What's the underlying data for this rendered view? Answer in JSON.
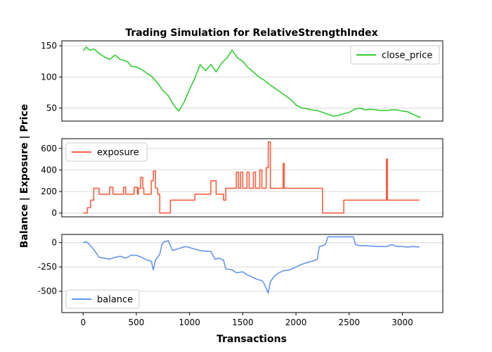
{
  "chart_data": {
    "type": "line",
    "title": "Trading Simulation for RelativeStrengthIndex",
    "xlabel": "Transactions",
    "ylabel": "Balance | Exposure | Price",
    "xlim": [
      -200,
      3380
    ],
    "x_ticks": [
      0,
      500,
      1000,
      1500,
      2000,
      2500,
      3000
    ],
    "grid": "horizontal",
    "panels": [
      {
        "series_name": "close_price",
        "color": "#32cd32",
        "legend": "top-right",
        "ylim": [
          29,
          158
        ],
        "y_ticks": [
          50,
          100,
          150
        ],
        "points": [
          [
            0,
            142
          ],
          [
            30,
            148
          ],
          [
            60,
            143
          ],
          [
            100,
            145
          ],
          [
            150,
            138
          ],
          [
            200,
            132
          ],
          [
            250,
            128
          ],
          [
            300,
            135
          ],
          [
            350,
            128
          ],
          [
            380,
            127
          ],
          [
            420,
            124
          ],
          [
            450,
            117
          ],
          [
            500,
            116
          ],
          [
            550,
            112
          ],
          [
            600,
            106
          ],
          [
            650,
            100
          ],
          [
            700,
            90
          ],
          [
            750,
            78
          ],
          [
            800,
            70
          ],
          [
            850,
            55
          ],
          [
            900,
            45
          ],
          [
            950,
            60
          ],
          [
            1000,
            80
          ],
          [
            1050,
            98
          ],
          [
            1100,
            120
          ],
          [
            1150,
            110
          ],
          [
            1200,
            120
          ],
          [
            1250,
            108
          ],
          [
            1300,
            122
          ],
          [
            1350,
            130
          ],
          [
            1400,
            143
          ],
          [
            1450,
            131
          ],
          [
            1500,
            125
          ],
          [
            1550,
            115
          ],
          [
            1600,
            108
          ],
          [
            1650,
            100
          ],
          [
            1700,
            95
          ],
          [
            1750,
            88
          ],
          [
            1800,
            82
          ],
          [
            1850,
            76
          ],
          [
            1900,
            70
          ],
          [
            1950,
            64
          ],
          [
            2000,
            55
          ],
          [
            2050,
            50
          ],
          [
            2100,
            49
          ],
          [
            2150,
            47
          ],
          [
            2200,
            46
          ],
          [
            2250,
            43
          ],
          [
            2300,
            40
          ],
          [
            2350,
            37
          ],
          [
            2400,
            38
          ],
          [
            2450,
            41
          ],
          [
            2500,
            43
          ],
          [
            2550,
            48
          ],
          [
            2600,
            50
          ],
          [
            2650,
            47
          ],
          [
            2700,
            48
          ],
          [
            2750,
            47
          ],
          [
            2800,
            46
          ],
          [
            2850,
            46
          ],
          [
            2900,
            47
          ],
          [
            2950,
            47
          ],
          [
            3000,
            45
          ],
          [
            3050,
            44
          ],
          [
            3100,
            40
          ],
          [
            3150,
            36
          ],
          [
            3170,
            35
          ]
        ]
      },
      {
        "series_name": "exposure",
        "color": "#fa5f3f",
        "legend": "top-left",
        "ylim": [
          -35,
          690
        ],
        "y_ticks": [
          0,
          200,
          400,
          600
        ],
        "points": [
          [
            0,
            0
          ],
          [
            40,
            0
          ],
          [
            40,
            50
          ],
          [
            70,
            50
          ],
          [
            70,
            120
          ],
          [
            100,
            120
          ],
          [
            100,
            230
          ],
          [
            150,
            230
          ],
          [
            150,
            175
          ],
          [
            250,
            175
          ],
          [
            250,
            240
          ],
          [
            280,
            240
          ],
          [
            280,
            175
          ],
          [
            380,
            175
          ],
          [
            380,
            240
          ],
          [
            400,
            240
          ],
          [
            400,
            175
          ],
          [
            480,
            175
          ],
          [
            480,
            240
          ],
          [
            510,
            240
          ],
          [
            510,
            175
          ],
          [
            520,
            175
          ],
          [
            520,
            230
          ],
          [
            540,
            230
          ],
          [
            540,
            330
          ],
          [
            560,
            330
          ],
          [
            560,
            230
          ],
          [
            570,
            230
          ],
          [
            570,
            175
          ],
          [
            640,
            175
          ],
          [
            640,
            300
          ],
          [
            660,
            300
          ],
          [
            660,
            390
          ],
          [
            680,
            390
          ],
          [
            680,
            230
          ],
          [
            700,
            230
          ],
          [
            700,
            175
          ],
          [
            720,
            175
          ],
          [
            720,
            0
          ],
          [
            820,
            0
          ],
          [
            820,
            120
          ],
          [
            1050,
            120
          ],
          [
            1050,
            175
          ],
          [
            1200,
            175
          ],
          [
            1200,
            300
          ],
          [
            1250,
            300
          ],
          [
            1250,
            175
          ],
          [
            1320,
            175
          ],
          [
            1320,
            120
          ],
          [
            1340,
            120
          ],
          [
            1340,
            230
          ],
          [
            1400,
            230
          ],
          [
            1400,
            230
          ],
          [
            1440,
            230
          ],
          [
            1440,
            380
          ],
          [
            1460,
            380
          ],
          [
            1460,
            230
          ],
          [
            1480,
            230
          ],
          [
            1480,
            380
          ],
          [
            1500,
            380
          ],
          [
            1500,
            230
          ],
          [
            1540,
            230
          ],
          [
            1540,
            380
          ],
          [
            1560,
            380
          ],
          [
            1560,
            230
          ],
          [
            1600,
            230
          ],
          [
            1600,
            380
          ],
          [
            1620,
            380
          ],
          [
            1620,
            230
          ],
          [
            1660,
            230
          ],
          [
            1660,
            400
          ],
          [
            1680,
            400
          ],
          [
            1680,
            230
          ],
          [
            1720,
            230
          ],
          [
            1720,
            420
          ],
          [
            1740,
            420
          ],
          [
            1740,
            660
          ],
          [
            1760,
            660
          ],
          [
            1760,
            230
          ],
          [
            1880,
            230
          ],
          [
            1880,
            460
          ],
          [
            1890,
            460
          ],
          [
            1890,
            230
          ],
          [
            2250,
            230
          ],
          [
            2250,
            0
          ],
          [
            2450,
            0
          ],
          [
            2450,
            120
          ],
          [
            2850,
            120
          ],
          [
            2850,
            500
          ],
          [
            2860,
            500
          ],
          [
            2860,
            120
          ],
          [
            3160,
            120
          ]
        ]
      },
      {
        "series_name": "balance",
        "color": "#6495ed",
        "legend": "bottom-left",
        "ylim": [
          -720,
          85
        ],
        "y_ticks": [
          0,
          -250,
          -500
        ],
        "points": [
          [
            0,
            0
          ],
          [
            30,
            10
          ],
          [
            60,
            -20
          ],
          [
            100,
            -70
          ],
          [
            150,
            -150
          ],
          [
            200,
            -160
          ],
          [
            250,
            -170
          ],
          [
            300,
            -150
          ],
          [
            350,
            -140
          ],
          [
            400,
            -160
          ],
          [
            450,
            -130
          ],
          [
            500,
            -130
          ],
          [
            550,
            -150
          ],
          [
            600,
            -180
          ],
          [
            640,
            -190
          ],
          [
            660,
            -280
          ],
          [
            680,
            -180
          ],
          [
            720,
            -120
          ],
          [
            740,
            -20
          ],
          [
            760,
            10
          ],
          [
            800,
            20
          ],
          [
            840,
            -80
          ],
          [
            900,
            -60
          ],
          [
            960,
            -40
          ],
          [
            1000,
            -50
          ],
          [
            1060,
            -70
          ],
          [
            1100,
            -80
          ],
          [
            1160,
            -90
          ],
          [
            1200,
            -90
          ],
          [
            1240,
            -170
          ],
          [
            1280,
            -160
          ],
          [
            1320,
            -180
          ],
          [
            1340,
            -270
          ],
          [
            1400,
            -280
          ],
          [
            1440,
            -310
          ],
          [
            1500,
            -300
          ],
          [
            1540,
            -330
          ],
          [
            1600,
            -360
          ],
          [
            1640,
            -380
          ],
          [
            1680,
            -390
          ],
          [
            1700,
            -420
          ],
          [
            1740,
            -520
          ],
          [
            1760,
            -400
          ],
          [
            1800,
            -340
          ],
          [
            1840,
            -310
          ],
          [
            1880,
            -290
          ],
          [
            1940,
            -280
          ],
          [
            2000,
            -250
          ],
          [
            2060,
            -220
          ],
          [
            2120,
            -200
          ],
          [
            2160,
            -190
          ],
          [
            2200,
            -170
          ],
          [
            2220,
            -40
          ],
          [
            2260,
            -30
          ],
          [
            2280,
            -10
          ],
          [
            2300,
            60
          ],
          [
            2400,
            60
          ],
          [
            2450,
            60
          ],
          [
            2500,
            60
          ],
          [
            2540,
            60
          ],
          [
            2560,
            -20
          ],
          [
            2600,
            -30
          ],
          [
            2650,
            -30
          ],
          [
            2700,
            -35
          ],
          [
            2750,
            -40
          ],
          [
            2800,
            -40
          ],
          [
            2850,
            -40
          ],
          [
            2900,
            -20
          ],
          [
            2950,
            -40
          ],
          [
            3000,
            -40
          ],
          [
            3050,
            -45
          ],
          [
            3100,
            -40
          ],
          [
            3160,
            -45
          ]
        ]
      }
    ]
  }
}
